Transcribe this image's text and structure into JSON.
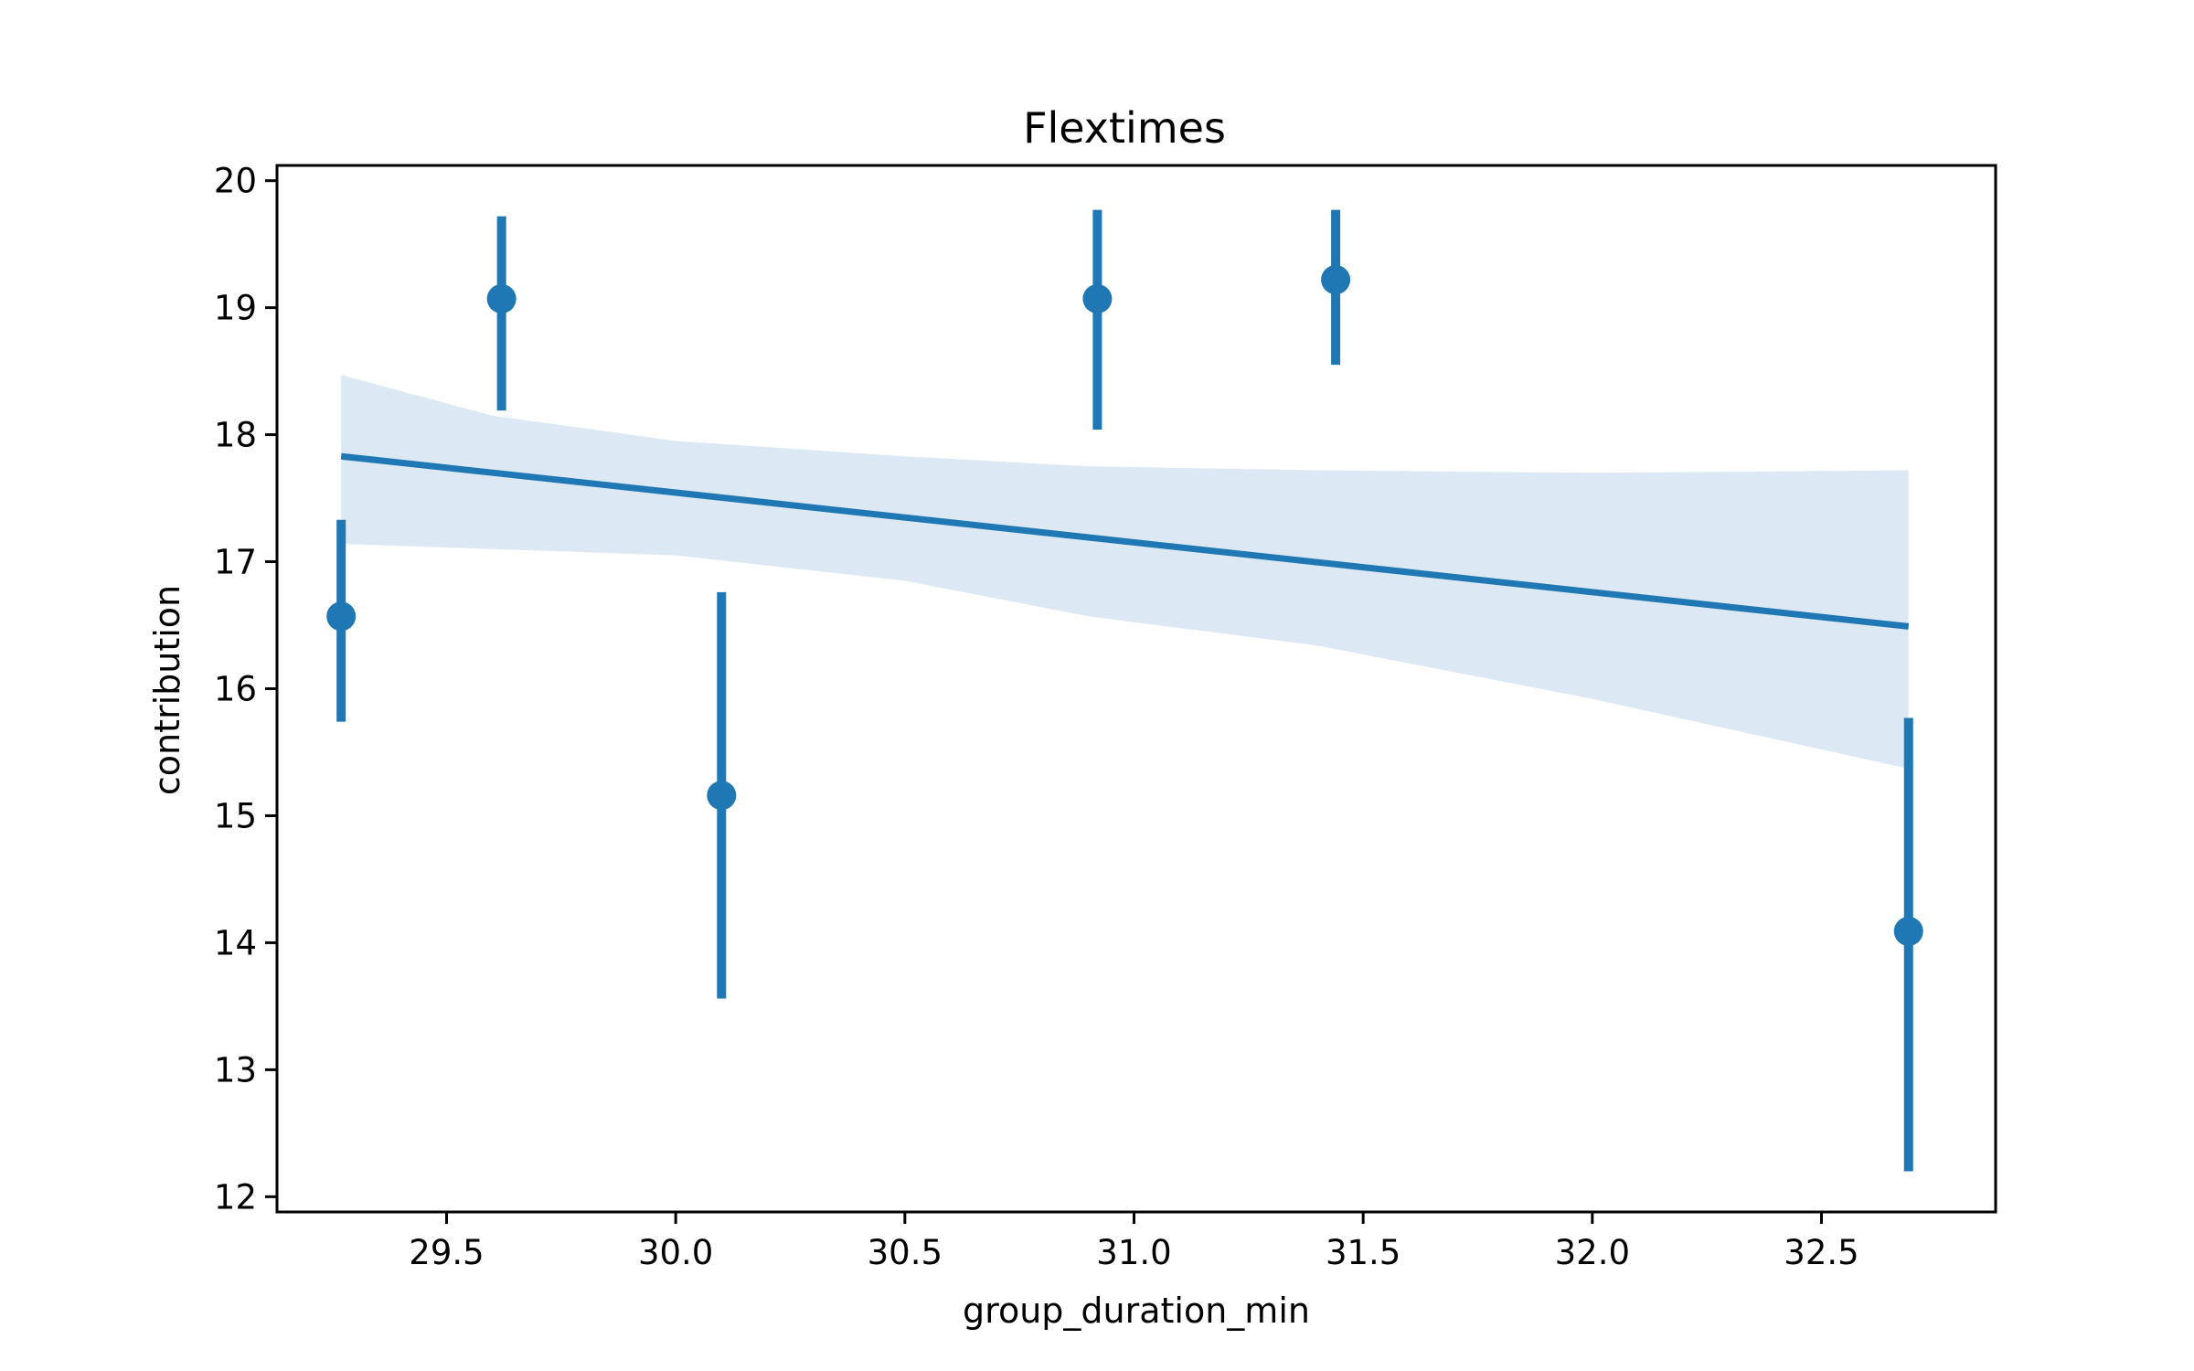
{
  "chart_data": {
    "type": "scatter",
    "title": "Flextimes",
    "xlabel": "group_duration_min",
    "ylabel": "contribution",
    "xlim": [
      29.13,
      32.88
    ],
    "ylim": [
      11.88,
      20.12
    ],
    "x_ticks": [
      29.5,
      30.0,
      30.5,
      31.0,
      31.5,
      32.0,
      32.5
    ],
    "x_tick_labels": [
      "29.5",
      "30.0",
      "30.5",
      "31.0",
      "31.5",
      "32.0",
      "32.5"
    ],
    "y_ticks": [
      12,
      13,
      14,
      15,
      16,
      17,
      18,
      19,
      20
    ],
    "y_tick_labels": [
      "12",
      "13",
      "14",
      "15",
      "16",
      "17",
      "18",
      "19",
      "20"
    ],
    "grid": false,
    "colors": {
      "points": "#1f77b4",
      "band": "#dce8f3",
      "axes": "#000000"
    },
    "points": [
      {
        "x": 29.27,
        "y": 16.57,
        "ci": [
          15.74,
          17.33
        ]
      },
      {
        "x": 29.62,
        "y": 19.07,
        "ci": [
          18.19,
          19.72
        ]
      },
      {
        "x": 30.1,
        "y": 15.16,
        "ci": [
          13.56,
          16.76
        ]
      },
      {
        "x": 30.92,
        "y": 19.07,
        "ci": [
          18.04,
          19.77
        ]
      },
      {
        "x": 31.44,
        "y": 19.22,
        "ci": [
          18.55,
          19.77
        ]
      },
      {
        "x": 32.69,
        "y": 14.09,
        "ci": [
          12.2,
          15.77
        ]
      }
    ],
    "regression": {
      "x": [
        29.27,
        32.69
      ],
      "y": [
        17.83,
        16.49
      ]
    },
    "confidence_band": {
      "x": [
        29.27,
        29.6,
        30.0,
        30.5,
        30.9,
        31.4,
        32.0,
        32.69
      ],
      "upper": [
        18.47,
        18.15,
        17.95,
        17.83,
        17.75,
        17.72,
        17.7,
        17.72
      ],
      "lower": [
        17.14,
        17.1,
        17.05,
        16.85,
        16.57,
        16.34,
        15.92,
        15.37
      ]
    }
  }
}
